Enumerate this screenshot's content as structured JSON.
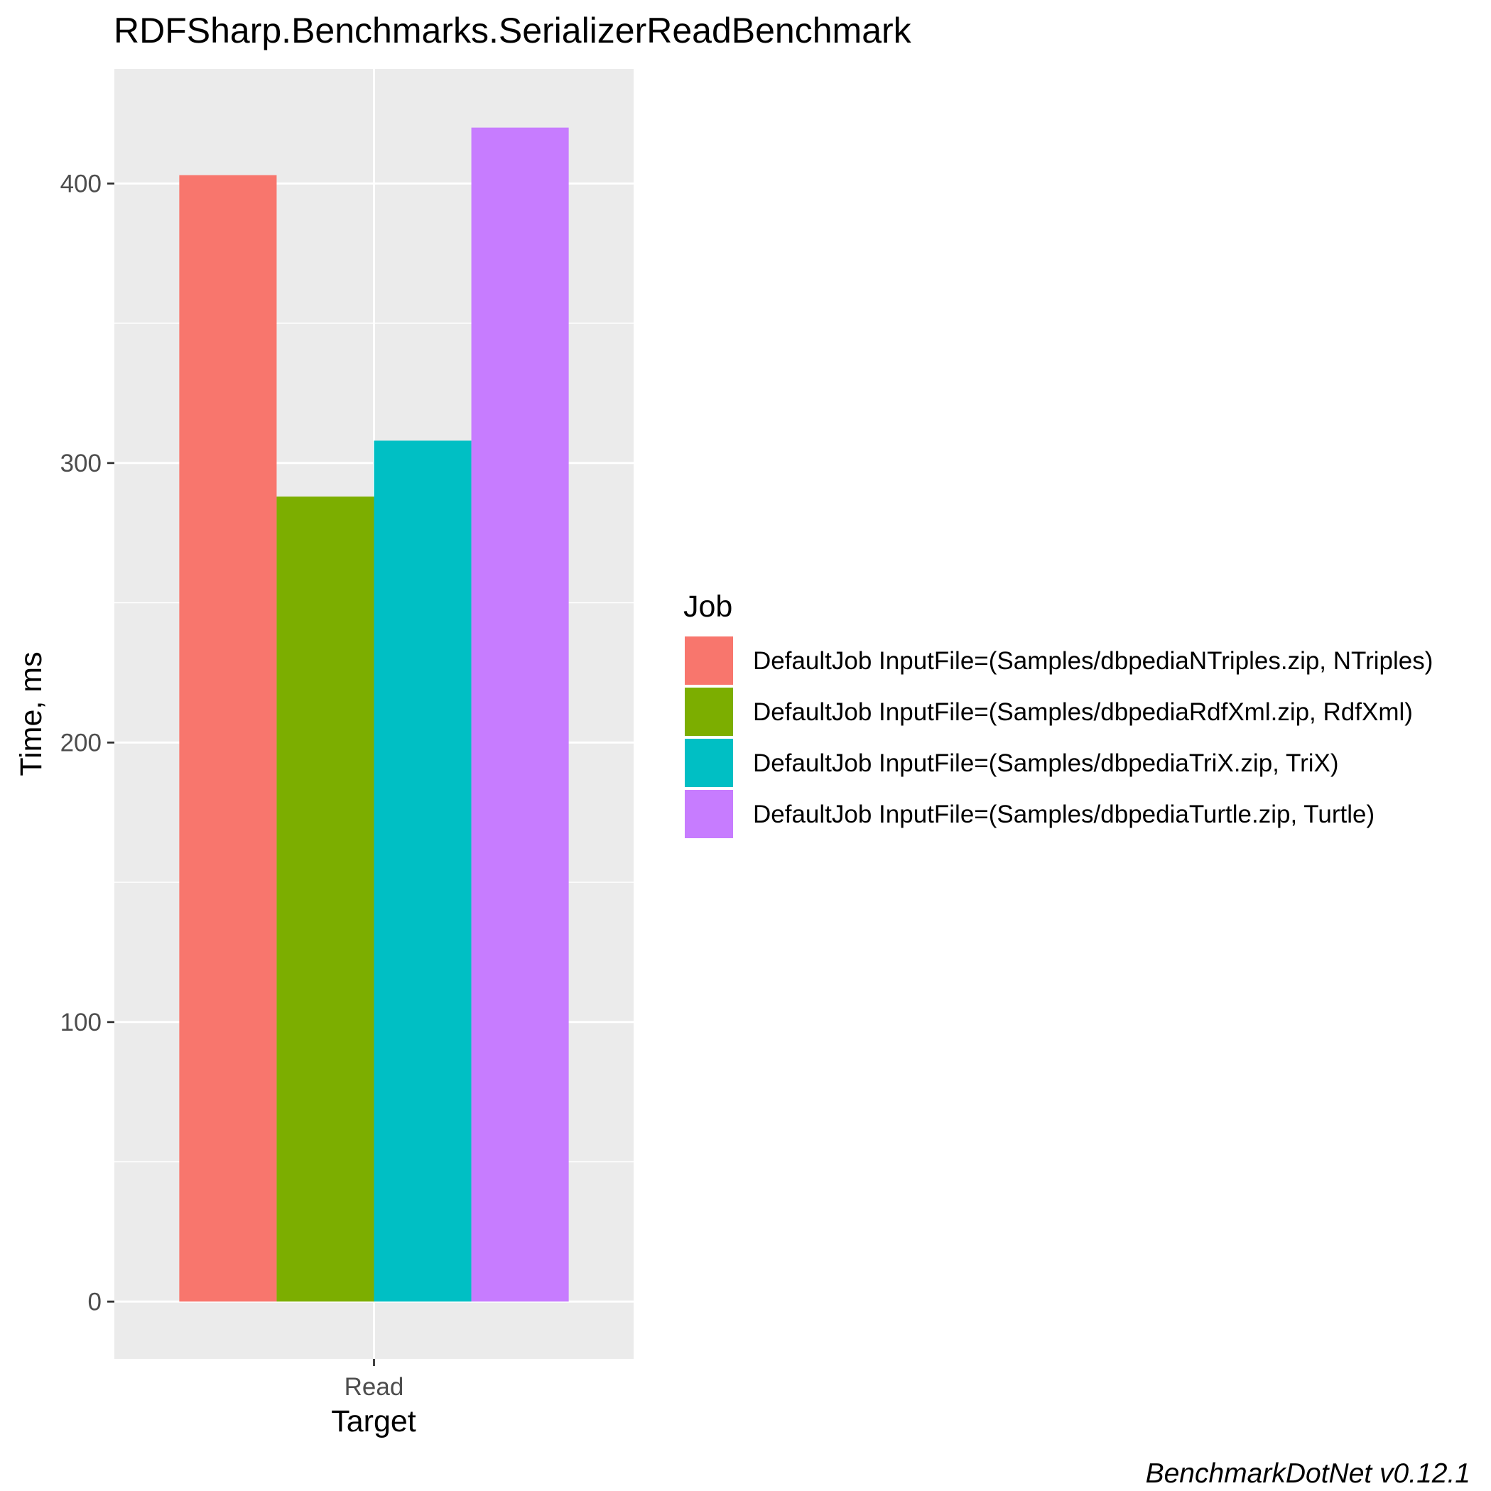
{
  "chart_data": {
    "type": "bar",
    "title": "RDFSharp.Benchmarks.SerializerReadBenchmark",
    "xlabel": "Target",
    "ylabel": "Time, ms",
    "categories": [
      "Read"
    ],
    "series": [
      {
        "name": "DefaultJob InputFile=(Samples/dbpediaNTriples.zip, NTriples)",
        "values": [
          403
        ],
        "color": "#F8766D"
      },
      {
        "name": "DefaultJob InputFile=(Samples/dbpediaRdfXml.zip, RdfXml)",
        "values": [
          288
        ],
        "color": "#7CAE00"
      },
      {
        "name": "DefaultJob InputFile=(Samples/dbpediaTriX.zip, TriX)",
        "values": [
          308
        ],
        "color": "#00BFC4"
      },
      {
        "name": "DefaultJob InputFile=(Samples/dbpediaTurtle.zip, Turtle)",
        "values": [
          420
        ],
        "color": "#C77CFF"
      }
    ],
    "yticks": [
      0,
      100,
      200,
      300,
      400
    ],
    "ylim": [
      -20.5,
      441
    ],
    "grid": true,
    "legend": {
      "title": "Job",
      "position": "right"
    },
    "caption": "BenchmarkDotNet v0.12.1",
    "panel_background": "#EBEBEB",
    "grid_color": "#FFFFFF"
  }
}
